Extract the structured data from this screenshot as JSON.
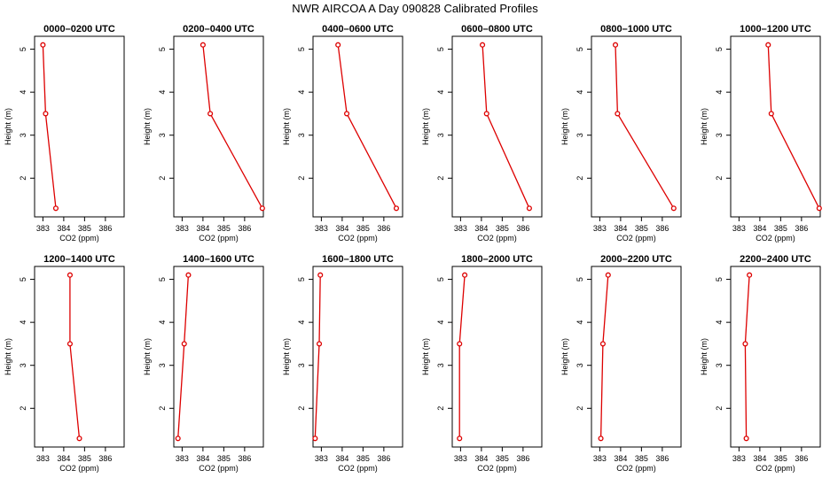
{
  "title": "NWR AIRCOA A  Day 090828  Calibrated Profiles",
  "style": {
    "line_color": "#dd0000",
    "point_color": "#dd0000"
  },
  "chart_data": [
    {
      "type": "line",
      "title": "0000–0200 UTC",
      "xlabel": "CO2 (ppm)",
      "ylabel": "Height (m)",
      "xlim": [
        382.6,
        386.9
      ],
      "ylim": [
        1.1,
        5.3
      ],
      "xticks": [
        "383",
        "384",
        "385",
        "386"
      ],
      "yticks": [
        "2",
        "3",
        "4",
        "5"
      ],
      "x": [
        383.0,
        383.13,
        383.62
      ],
      "y": [
        5.1,
        3.5,
        1.3
      ]
    },
    {
      "type": "line",
      "title": "0200–0400 UTC",
      "xlabel": "CO2 (ppm)",
      "ylabel": "Height (m)",
      "xlim": [
        382.6,
        386.9
      ],
      "ylim": [
        1.1,
        5.3
      ],
      "xticks": [
        "383",
        "384",
        "385",
        "386"
      ],
      "yticks": [
        "2",
        "3",
        "4",
        "5"
      ],
      "x": [
        384.0,
        384.35,
        386.85
      ],
      "y": [
        5.1,
        3.5,
        1.3
      ]
    },
    {
      "type": "line",
      "title": "0400–0600 UTC",
      "xlabel": "CO2 (ppm)",
      "ylabel": "Height (m)",
      "xlim": [
        382.6,
        386.9
      ],
      "ylim": [
        1.1,
        5.3
      ],
      "xticks": [
        "383",
        "384",
        "385",
        "386"
      ],
      "yticks": [
        "2",
        "3",
        "4",
        "5"
      ],
      "x": [
        383.8,
        384.22,
        386.6
      ],
      "y": [
        5.1,
        3.5,
        1.3
      ]
    },
    {
      "type": "line",
      "title": "0600–0800 UTC",
      "xlabel": "CO2 (ppm)",
      "ylabel": "Height (m)",
      "xlim": [
        382.6,
        386.9
      ],
      "ylim": [
        1.1,
        5.3
      ],
      "xticks": [
        "383",
        "384",
        "385",
        "386"
      ],
      "yticks": [
        "2",
        "3",
        "4",
        "5"
      ],
      "x": [
        384.05,
        384.25,
        386.3
      ],
      "y": [
        5.1,
        3.5,
        1.3
      ]
    },
    {
      "type": "line",
      "title": "0800–1000 UTC",
      "xlabel": "CO2 (ppm)",
      "ylabel": "Height (m)",
      "xlim": [
        382.6,
        386.9
      ],
      "ylim": [
        1.1,
        5.3
      ],
      "xticks": [
        "383",
        "384",
        "385",
        "386"
      ],
      "yticks": [
        "2",
        "3",
        "4",
        "5"
      ],
      "x": [
        383.75,
        383.85,
        386.55
      ],
      "y": [
        5.1,
        3.5,
        1.3
      ]
    },
    {
      "type": "line",
      "title": "1000–1200 UTC",
      "xlabel": "CO2 (ppm)",
      "ylabel": "Height (m)",
      "xlim": [
        382.6,
        386.9
      ],
      "ylim": [
        1.1,
        5.3
      ],
      "xticks": [
        "383",
        "384",
        "385",
        "386"
      ],
      "yticks": [
        "2",
        "3",
        "4",
        "5"
      ],
      "x": [
        384.4,
        384.55,
        386.85
      ],
      "y": [
        5.1,
        3.5,
        1.3
      ]
    },
    {
      "type": "line",
      "title": "1200–1400 UTC",
      "xlabel": "CO2 (ppm)",
      "ylabel": "Height (m)",
      "xlim": [
        382.6,
        386.9
      ],
      "ylim": [
        1.1,
        5.3
      ],
      "xticks": [
        "383",
        "384",
        "385",
        "386"
      ],
      "yticks": [
        "2",
        "3",
        "4",
        "5"
      ],
      "x": [
        384.3,
        384.3,
        384.75
      ],
      "y": [
        5.1,
        3.5,
        1.3
      ]
    },
    {
      "type": "line",
      "title": "1400–1600 UTC",
      "xlabel": "CO2 (ppm)",
      "ylabel": "Height (m)",
      "xlim": [
        382.6,
        386.9
      ],
      "ylim": [
        1.1,
        5.3
      ],
      "xticks": [
        "383",
        "384",
        "385",
        "386"
      ],
      "yticks": [
        "2",
        "3",
        "4",
        "5"
      ],
      "x": [
        383.3,
        383.1,
        382.8
      ],
      "y": [
        5.1,
        3.5,
        1.3
      ]
    },
    {
      "type": "line",
      "title": "1600–1800 UTC",
      "xlabel": "CO2 (ppm)",
      "ylabel": "Height (m)",
      "xlim": [
        382.6,
        386.9
      ],
      "ylim": [
        1.1,
        5.3
      ],
      "xticks": [
        "383",
        "384",
        "385",
        "386"
      ],
      "yticks": [
        "2",
        "3",
        "4",
        "5"
      ],
      "x": [
        382.95,
        382.9,
        382.7
      ],
      "y": [
        5.1,
        3.5,
        1.3
      ]
    },
    {
      "type": "line",
      "title": "1800–2000 UTC",
      "xlabel": "CO2 (ppm)",
      "ylabel": "Height (m)",
      "xlim": [
        382.6,
        386.9
      ],
      "ylim": [
        1.1,
        5.3
      ],
      "xticks": [
        "383",
        "384",
        "385",
        "386"
      ],
      "yticks": [
        "2",
        "3",
        "4",
        "5"
      ],
      "x": [
        383.2,
        382.95,
        382.95
      ],
      "y": [
        5.1,
        3.5,
        1.3
      ]
    },
    {
      "type": "line",
      "title": "2000–2200 UTC",
      "xlabel": "CO2 (ppm)",
      "ylabel": "Height (m)",
      "xlim": [
        382.6,
        386.9
      ],
      "ylim": [
        1.1,
        5.3
      ],
      "xticks": [
        "383",
        "384",
        "385",
        "386"
      ],
      "yticks": [
        "2",
        "3",
        "4",
        "5"
      ],
      "x": [
        383.4,
        383.15,
        383.05
      ],
      "y": [
        5.1,
        3.5,
        1.3
      ]
    },
    {
      "type": "line",
      "title": "2200–2400 UTC",
      "xlabel": "CO2 (ppm)",
      "ylabel": "Height (m)",
      "xlim": [
        382.6,
        386.9
      ],
      "ylim": [
        1.1,
        5.3
      ],
      "xticks": [
        "383",
        "384",
        "385",
        "386"
      ],
      "yticks": [
        "2",
        "3",
        "4",
        "5"
      ],
      "x": [
        383.5,
        383.3,
        383.35
      ],
      "y": [
        5.1,
        3.5,
        1.3
      ]
    }
  ]
}
